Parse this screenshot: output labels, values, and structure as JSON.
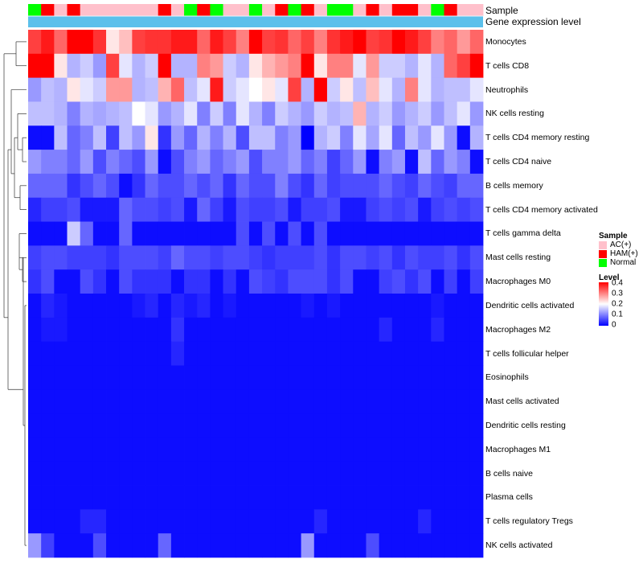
{
  "chart_data": {
    "type": "heatmap",
    "annotation_labels": [
      "Sample",
      "Gene expression level"
    ],
    "sample_groups": [
      "Normal",
      "HAM(+)",
      "AC(+)",
      "HAM(+)",
      "AC(+)",
      "AC(+)",
      "AC(+)",
      "AC(+)",
      "AC(+)",
      "AC(+)",
      "HAM(+)",
      "AC(+)",
      "Normal",
      "HAM(+)",
      "Normal",
      "AC(+)",
      "AC(+)",
      "Normal",
      "AC(+)",
      "HAM(+)",
      "Normal",
      "HAM(+)",
      "AC(+)",
      "Normal",
      "Normal",
      "AC(+)",
      "HAM(+)",
      "AC(+)",
      "HAM(+)",
      "HAM(+)",
      "AC(+)",
      "Normal",
      "HAM(+)",
      "AC(+)",
      "AC(+)"
    ],
    "rows": [
      {
        "label": "Monocytes",
        "values": [
          0.35,
          0.38,
          0.32,
          0.4,
          0.4,
          0.36,
          0.22,
          0.25,
          0.35,
          0.36,
          0.36,
          0.38,
          0.38,
          0.32,
          0.38,
          0.35,
          0.3,
          0.4,
          0.35,
          0.36,
          0.32,
          0.35,
          0.3,
          0.36,
          0.38,
          0.4,
          0.35,
          0.36,
          0.4,
          0.38,
          0.35,
          0.3,
          0.32,
          0.28,
          0.32
        ]
      },
      {
        "label": "T cells CD8",
        "values": [
          0.4,
          0.4,
          0.22,
          0.14,
          0.16,
          0.12,
          0.35,
          0.18,
          0.14,
          0.16,
          0.4,
          0.14,
          0.14,
          0.3,
          0.28,
          0.16,
          0.14,
          0.22,
          0.26,
          0.28,
          0.3,
          0.4,
          0.22,
          0.3,
          0.3,
          0.18,
          0.28,
          0.16,
          0.16,
          0.14,
          0.18,
          0.14,
          0.32,
          0.35,
          0.4
        ]
      },
      {
        "label": "Neutrophils",
        "values": [
          0.12,
          0.15,
          0.14,
          0.22,
          0.18,
          0.16,
          0.28,
          0.28,
          0.14,
          0.15,
          0.26,
          0.32,
          0.15,
          0.18,
          0.38,
          0.16,
          0.18,
          0.2,
          0.22,
          0.18,
          0.35,
          0.14,
          0.4,
          0.16,
          0.22,
          0.15,
          0.25,
          0.18,
          0.14,
          0.3,
          0.18,
          0.14,
          0.15,
          0.15,
          0.18
        ]
      },
      {
        "label": "NK cells resting",
        "values": [
          0.15,
          0.15,
          0.14,
          0.1,
          0.14,
          0.13,
          0.14,
          0.15,
          0.2,
          0.18,
          0.12,
          0.14,
          0.18,
          0.1,
          0.16,
          0.1,
          0.18,
          0.14,
          0.1,
          0.16,
          0.14,
          0.12,
          0.16,
          0.14,
          0.15,
          0.26,
          0.14,
          0.16,
          0.12,
          0.14,
          0.16,
          0.12,
          0.15,
          0.18,
          0.12
        ]
      },
      {
        "label": "T cells CD4 memory resting",
        "values": [
          0.01,
          0.01,
          0.15,
          0.08,
          0.1,
          0.15,
          0.05,
          0.15,
          0.12,
          0.22,
          0.04,
          0.12,
          0.08,
          0.14,
          0.1,
          0.14,
          0.06,
          0.15,
          0.15,
          0.1,
          0.12,
          0.0,
          0.14,
          0.16,
          0.1,
          0.18,
          0.13,
          0.18,
          0.08,
          0.15,
          0.12,
          0.18,
          0.12,
          0.01,
          0.14
        ]
      },
      {
        "label": "T cells CD4 naive",
        "values": [
          0.12,
          0.1,
          0.1,
          0.08,
          0.12,
          0.06,
          0.1,
          0.08,
          0.06,
          0.12,
          0.01,
          0.06,
          0.1,
          0.12,
          0.08,
          0.1,
          0.12,
          0.06,
          0.1,
          0.1,
          0.12,
          0.08,
          0.1,
          0.05,
          0.08,
          0.12,
          0.01,
          0.1,
          0.12,
          0.01,
          0.15,
          0.08,
          0.12,
          0.1,
          0.01
        ]
      },
      {
        "label": "B cells memory",
        "values": [
          0.08,
          0.08,
          0.08,
          0.04,
          0.06,
          0.08,
          0.06,
          0.01,
          0.04,
          0.08,
          0.06,
          0.06,
          0.08,
          0.06,
          0.08,
          0.04,
          0.08,
          0.06,
          0.06,
          0.1,
          0.06,
          0.04,
          0.08,
          0.05,
          0.06,
          0.06,
          0.06,
          0.08,
          0.06,
          0.05,
          0.08,
          0.06,
          0.05,
          0.08,
          0.08
        ]
      },
      {
        "label": "T cells CD4 memory activated",
        "values": [
          0.03,
          0.05,
          0.05,
          0.06,
          0.02,
          0.02,
          0.02,
          0.08,
          0.06,
          0.06,
          0.05,
          0.06,
          0.02,
          0.08,
          0.05,
          0.02,
          0.06,
          0.05,
          0.05,
          0.06,
          0.02,
          0.05,
          0.05,
          0.06,
          0.02,
          0.02,
          0.05,
          0.06,
          0.05,
          0.06,
          0.02,
          0.05,
          0.06,
          0.05,
          0.06
        ]
      },
      {
        "label": "T cells gamma delta",
        "values": [
          0.01,
          0.01,
          0.01,
          0.16,
          0.08,
          0.01,
          0.01,
          0.08,
          0.01,
          0.01,
          0.01,
          0.01,
          0.01,
          0.01,
          0.01,
          0.01,
          0.06,
          0.01,
          0.06,
          0.01,
          0.06,
          0.01,
          0.06,
          0.01,
          0.01,
          0.01,
          0.01,
          0.01,
          0.01,
          0.01,
          0.01,
          0.01,
          0.01,
          0.01,
          0.01
        ]
      },
      {
        "label": "Mast cells resting",
        "values": [
          0.05,
          0.06,
          0.06,
          0.05,
          0.05,
          0.05,
          0.04,
          0.06,
          0.06,
          0.06,
          0.05,
          0.08,
          0.06,
          0.06,
          0.05,
          0.06,
          0.06,
          0.05,
          0.04,
          0.05,
          0.05,
          0.05,
          0.06,
          0.04,
          0.06,
          0.06,
          0.05,
          0.06,
          0.04,
          0.06,
          0.05,
          0.05,
          0.06,
          0.04,
          0.06
        ]
      },
      {
        "label": "Macrophages M0",
        "values": [
          0.04,
          0.06,
          0.01,
          0.01,
          0.06,
          0.04,
          0.01,
          0.06,
          0.04,
          0.04,
          0.04,
          0.01,
          0.04,
          0.04,
          0.01,
          0.04,
          0.01,
          0.06,
          0.05,
          0.04,
          0.06,
          0.06,
          0.06,
          0.04,
          0.06,
          0.01,
          0.01,
          0.05,
          0.06,
          0.04,
          0.06,
          0.01,
          0.05,
          0.01,
          0.05
        ]
      },
      {
        "label": "Dendritic cells activated",
        "values": [
          0.01,
          0.03,
          0.02,
          0.01,
          0.01,
          0.01,
          0.01,
          0.01,
          0.02,
          0.03,
          0.01,
          0.03,
          0.02,
          0.03,
          0.01,
          0.02,
          0.01,
          0.01,
          0.01,
          0.01,
          0.01,
          0.02,
          0.01,
          0.02,
          0.01,
          0.01,
          0.01,
          0.01,
          0.01,
          0.01,
          0.01,
          0.02,
          0.01,
          0.01,
          0.01
        ]
      },
      {
        "label": "Macrophages M2",
        "values": [
          0.01,
          0.02,
          0.02,
          0.01,
          0.01,
          0.01,
          0.01,
          0.01,
          0.01,
          0.01,
          0.01,
          0.04,
          0.01,
          0.01,
          0.01,
          0.01,
          0.01,
          0.01,
          0.01,
          0.01,
          0.01,
          0.01,
          0.01,
          0.01,
          0.01,
          0.01,
          0.01,
          0.03,
          0.01,
          0.01,
          0.01,
          0.03,
          0.01,
          0.01,
          0.01
        ]
      },
      {
        "label": "T cells follicular helper",
        "values": [
          0.01,
          0.01,
          0.01,
          0.01,
          0.01,
          0.01,
          0.01,
          0.01,
          0.01,
          0.01,
          0.01,
          0.03,
          0.01,
          0.01,
          0.01,
          0.01,
          0.01,
          0.01,
          0.01,
          0.01,
          0.01,
          0.01,
          0.01,
          0.01,
          0.01,
          0.01,
          0.01,
          0.01,
          0.01,
          0.01,
          0.01,
          0.01,
          0.01,
          0.01,
          0.01
        ]
      },
      {
        "label": "Eosinophils",
        "values": [
          0.01,
          0.01,
          0.01,
          0.01,
          0.01,
          0.01,
          0.01,
          0.01,
          0.01,
          0.01,
          0.01,
          0.01,
          0.01,
          0.01,
          0.01,
          0.01,
          0.01,
          0.01,
          0.01,
          0.01,
          0.01,
          0.01,
          0.01,
          0.01,
          0.01,
          0.01,
          0.01,
          0.01,
          0.01,
          0.01,
          0.01,
          0.01,
          0.01,
          0.01,
          0.01
        ]
      },
      {
        "label": "Mast cells activated",
        "values": [
          0.01,
          0.01,
          0.01,
          0.01,
          0.01,
          0.01,
          0.01,
          0.01,
          0.01,
          0.01,
          0.01,
          0.01,
          0.01,
          0.01,
          0.01,
          0.01,
          0.01,
          0.01,
          0.01,
          0.01,
          0.01,
          0.01,
          0.01,
          0.01,
          0.01,
          0.01,
          0.01,
          0.01,
          0.01,
          0.01,
          0.01,
          0.01,
          0.01,
          0.01,
          0.01
        ]
      },
      {
        "label": "Dendritic cells resting",
        "values": [
          0.01,
          0.01,
          0.01,
          0.01,
          0.01,
          0.01,
          0.01,
          0.01,
          0.01,
          0.01,
          0.01,
          0.01,
          0.01,
          0.01,
          0.01,
          0.01,
          0.01,
          0.01,
          0.01,
          0.01,
          0.01,
          0.01,
          0.01,
          0.01,
          0.01,
          0.01,
          0.01,
          0.01,
          0.01,
          0.01,
          0.01,
          0.01,
          0.01,
          0.01,
          0.01
        ]
      },
      {
        "label": "Macrophages M1",
        "values": [
          0.01,
          0.01,
          0.01,
          0.01,
          0.01,
          0.01,
          0.01,
          0.01,
          0.01,
          0.01,
          0.01,
          0.01,
          0.01,
          0.01,
          0.01,
          0.01,
          0.01,
          0.01,
          0.01,
          0.01,
          0.01,
          0.01,
          0.01,
          0.01,
          0.01,
          0.01,
          0.01,
          0.01,
          0.01,
          0.01,
          0.01,
          0.01,
          0.01,
          0.01,
          0.01
        ]
      },
      {
        "label": "B cells naive",
        "values": [
          0.01,
          0.01,
          0.01,
          0.01,
          0.01,
          0.01,
          0.01,
          0.01,
          0.01,
          0.01,
          0.01,
          0.01,
          0.01,
          0.01,
          0.01,
          0.01,
          0.01,
          0.01,
          0.01,
          0.01,
          0.01,
          0.01,
          0.01,
          0.01,
          0.01,
          0.01,
          0.01,
          0.01,
          0.01,
          0.01,
          0.01,
          0.01,
          0.01,
          0.01,
          0.01
        ]
      },
      {
        "label": "Plasma cells",
        "values": [
          0.01,
          0.01,
          0.01,
          0.01,
          0.01,
          0.01,
          0.01,
          0.01,
          0.01,
          0.01,
          0.01,
          0.01,
          0.01,
          0.01,
          0.01,
          0.01,
          0.01,
          0.01,
          0.01,
          0.01,
          0.01,
          0.01,
          0.01,
          0.01,
          0.01,
          0.01,
          0.01,
          0.01,
          0.01,
          0.01,
          0.01,
          0.01,
          0.01,
          0.01,
          0.01
        ]
      },
      {
        "label": "T cells regulatory  Tregs",
        "values": [
          0.01,
          0.01,
          0.01,
          0.01,
          0.03,
          0.03,
          0.01,
          0.01,
          0.01,
          0.01,
          0.01,
          0.01,
          0.01,
          0.01,
          0.01,
          0.01,
          0.01,
          0.01,
          0.01,
          0.01,
          0.01,
          0.01,
          0.03,
          0.01,
          0.01,
          0.01,
          0.01,
          0.01,
          0.01,
          0.01,
          0.03,
          0.01,
          0.01,
          0.01,
          0.01
        ]
      },
      {
        "label": "NK cells activated",
        "values": [
          0.12,
          0.05,
          0.01,
          0.01,
          0.01,
          0.06,
          0.01,
          0.01,
          0.01,
          0.01,
          0.08,
          0.01,
          0.01,
          0.01,
          0.01,
          0.01,
          0.01,
          0.01,
          0.01,
          0.01,
          0.01,
          0.12,
          0.01,
          0.01,
          0.01,
          0.01,
          0.06,
          0.01,
          0.01,
          0.01,
          0.01,
          0.01,
          0.01,
          0.01,
          0.01
        ]
      }
    ],
    "legend_sample": {
      "title": "Sample",
      "entries": [
        {
          "label": "AC(+)",
          "color": "#ffc0cb"
        },
        {
          "label": "HAM(+)",
          "color": "#ff0000"
        },
        {
          "label": "Normal",
          "color": "#00ff00"
        }
      ]
    },
    "legend_level": {
      "title": "Level",
      "ticks": [
        0.4,
        0.3,
        0.2,
        0.1,
        0
      ],
      "range": [
        0,
        0.4
      ],
      "colors": {
        "low": "#0000ff",
        "mid": "#ffffff",
        "high": "#ff0000"
      }
    },
    "gene_expression_color": "#5bc0eb"
  }
}
